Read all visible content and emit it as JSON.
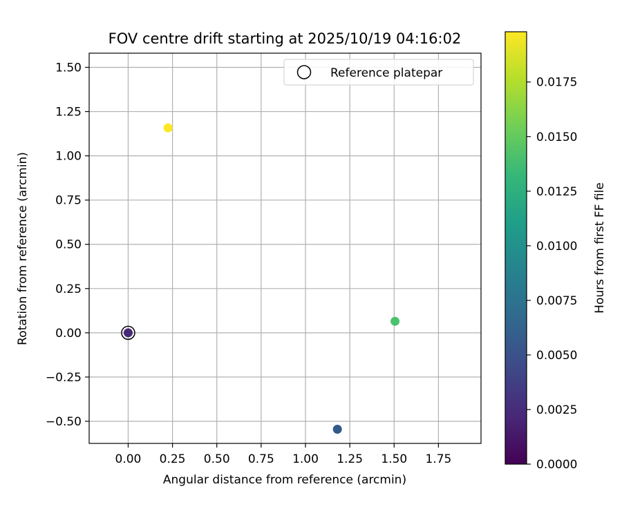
{
  "chart_data": {
    "type": "scatter",
    "title": "FOV centre drift starting at 2025/10/19 04:16:02",
    "xlabel": "Angular distance from reference (arcmin)",
    "ylabel": "Rotation from reference (arcmin)",
    "xlim": [
      -0.22,
      1.99
    ],
    "ylim": [
      -0.625,
      1.58
    ],
    "xticks": [
      0.0,
      0.25,
      0.5,
      0.75,
      1.0,
      1.25,
      1.5,
      1.75
    ],
    "xtick_labels": [
      "0.00",
      "0.25",
      "0.50",
      "0.75",
      "1.00",
      "1.25",
      "1.50",
      "1.75"
    ],
    "yticks": [
      -0.5,
      -0.25,
      0.0,
      0.25,
      0.5,
      0.75,
      1.0,
      1.25,
      1.5
    ],
    "ytick_labels": [
      "−0.50",
      "−0.25",
      "0.00",
      "0.25",
      "0.50",
      "0.75",
      "1.00",
      "1.25",
      "1.50"
    ],
    "grid": true,
    "legend": {
      "position": "top-right",
      "label": "Reference platepar"
    },
    "reference_point": {
      "x": 0.0,
      "y": 0.0
    },
    "points": [
      {
        "x": 0.0,
        "y": 0.0,
        "hours": 0.0028,
        "color": "#482878"
      },
      {
        "x": 1.18,
        "y": -0.545,
        "hours": 0.0056,
        "color": "#34598b"
      },
      {
        "x": 1.505,
        "y": 0.065,
        "hours": 0.0153,
        "color": "#4ac16d"
      },
      {
        "x": 0.225,
        "y": 1.158,
        "hours": 0.0198,
        "color": "#fde725"
      }
    ],
    "colorbar": {
      "label": "Hours from first FF file",
      "range": [
        0.0,
        0.0198
      ],
      "ticks": [
        0.0,
        0.0025,
        0.005,
        0.0075,
        0.01,
        0.0125,
        0.015,
        0.0175
      ],
      "tick_labels": [
        "0.0000",
        "0.0025",
        "0.0050",
        "0.0075",
        "0.0100",
        "0.0125",
        "0.0150",
        "0.0175"
      ],
      "colormap": [
        "#440154",
        "#482878",
        "#3e4989",
        "#31688e",
        "#26828e",
        "#1f9e89",
        "#35b779",
        "#6ece58",
        "#b5de2b",
        "#fde725"
      ]
    }
  }
}
